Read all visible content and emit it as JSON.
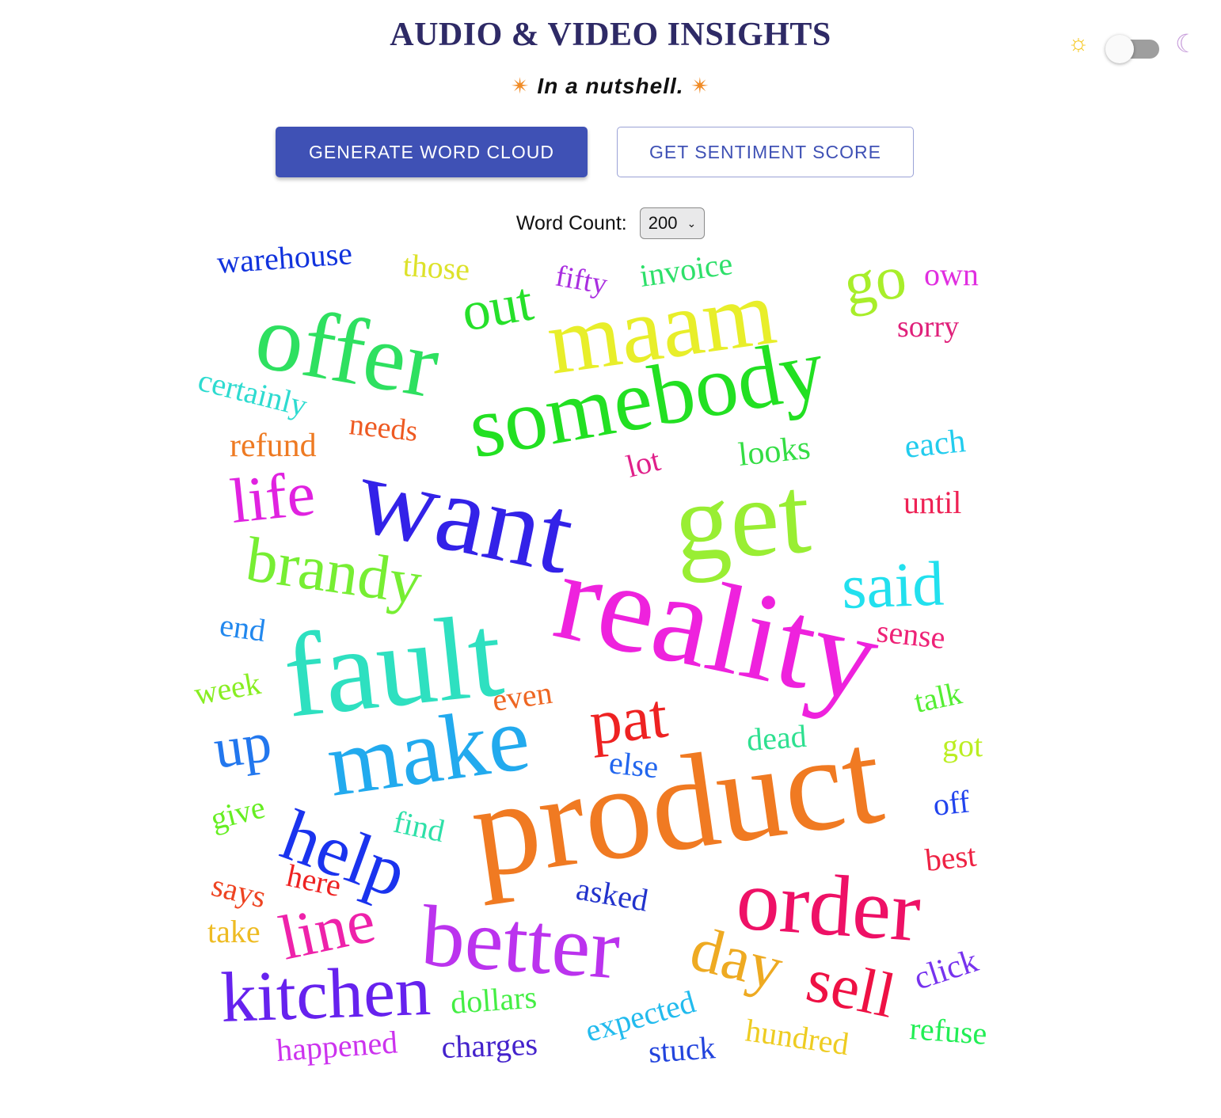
{
  "header": {
    "title": "AUDIO & VIDEO INSIGHTS",
    "subtitle": "In a nutshell.",
    "spark_glyph": "✴"
  },
  "theme_toggle": {
    "sun_icon": "sun-icon",
    "moon_icon": "moon-icon",
    "state": "light"
  },
  "actions": {
    "generate_label": "GENERATE WORD CLOUD",
    "sentiment_label": "GET SENTIMENT SCORE"
  },
  "word_count": {
    "label": "Word Count:",
    "value": "200"
  },
  "colors": {
    "primary": "#3f51b5",
    "title": "#2e2a66"
  },
  "word_cloud": {
    "words": [
      {
        "text": "warehouse",
        "color": "#1133dd"
      },
      {
        "text": "those",
        "color": "#dde22a"
      },
      {
        "text": "fifty",
        "color": "#a92ee0"
      },
      {
        "text": "invoice",
        "color": "#2ee06a"
      },
      {
        "text": "own",
        "color": "#e02ee0"
      },
      {
        "text": "offer",
        "color": "#2ee060"
      },
      {
        "text": "out",
        "color": "#26e02a"
      },
      {
        "text": "maam",
        "color": "#e8ee2a"
      },
      {
        "text": "go",
        "color": "#a8ee2a"
      },
      {
        "text": "sorry",
        "color": "#e0207a"
      },
      {
        "text": "certainly",
        "color": "#2edbd0"
      },
      {
        "text": "somebody",
        "color": "#22e022"
      },
      {
        "text": "needs",
        "color": "#ee5a22"
      },
      {
        "text": "refund",
        "color": "#ee7a22"
      },
      {
        "text": "lot",
        "color": "#e0208a"
      },
      {
        "text": "looks",
        "color": "#34dd44"
      },
      {
        "text": "each",
        "color": "#22ccee"
      },
      {
        "text": "life",
        "color": "#e022e0"
      },
      {
        "text": "want",
        "color": "#3322e8"
      },
      {
        "text": "get",
        "color": "#99ee33"
      },
      {
        "text": "until",
        "color": "#ee2255"
      },
      {
        "text": "brandy",
        "color": "#77ee33"
      },
      {
        "text": "said",
        "color": "#22e0ee"
      },
      {
        "text": "end",
        "color": "#2288ee"
      },
      {
        "text": "fault",
        "color": "#2ee0c0"
      },
      {
        "text": "reality",
        "color": "#ee22dd"
      },
      {
        "text": "sense",
        "color": "#ee2277"
      },
      {
        "text": "week",
        "color": "#88ee22"
      },
      {
        "text": "even",
        "color": "#ee6622"
      },
      {
        "text": "talk",
        "color": "#55ee33"
      },
      {
        "text": "pat",
        "color": "#ee2222"
      },
      {
        "text": "up",
        "color": "#2277ee"
      },
      {
        "text": "make",
        "color": "#22aaee"
      },
      {
        "text": "dead",
        "color": "#2ee090"
      },
      {
        "text": "got",
        "color": "#bbee22"
      },
      {
        "text": "else",
        "color": "#2266ee"
      },
      {
        "text": "give",
        "color": "#66ee22"
      },
      {
        "text": "find",
        "color": "#2ee0a8"
      },
      {
        "text": "product",
        "color": "#f07a22"
      },
      {
        "text": "off",
        "color": "#2244ee"
      },
      {
        "text": "help",
        "color": "#1a33ee"
      },
      {
        "text": "best",
        "color": "#ee2244"
      },
      {
        "text": "says",
        "color": "#ee4422"
      },
      {
        "text": "here",
        "color": "#ee2222"
      },
      {
        "text": "asked",
        "color": "#2233cc"
      },
      {
        "text": "order",
        "color": "#ee1166"
      },
      {
        "text": "take",
        "color": "#eebb22"
      },
      {
        "text": "line",
        "color": "#ee22aa"
      },
      {
        "text": "better",
        "color": "#bb33ee"
      },
      {
        "text": "day",
        "color": "#eeaa22"
      },
      {
        "text": "sell",
        "color": "#ee1144"
      },
      {
        "text": "click",
        "color": "#7733ee"
      },
      {
        "text": "kitchen",
        "color": "#6622ee"
      },
      {
        "text": "dollars",
        "color": "#44ee44"
      },
      {
        "text": "expected",
        "color": "#22bbee"
      },
      {
        "text": "refuse",
        "color": "#22ee55"
      },
      {
        "text": "hundred",
        "color": "#eecc22"
      },
      {
        "text": "happened",
        "color": "#cc33ee"
      },
      {
        "text": "charges",
        "color": "#4422cc"
      },
      {
        "text": "stuck",
        "color": "#2244dd"
      }
    ]
  }
}
